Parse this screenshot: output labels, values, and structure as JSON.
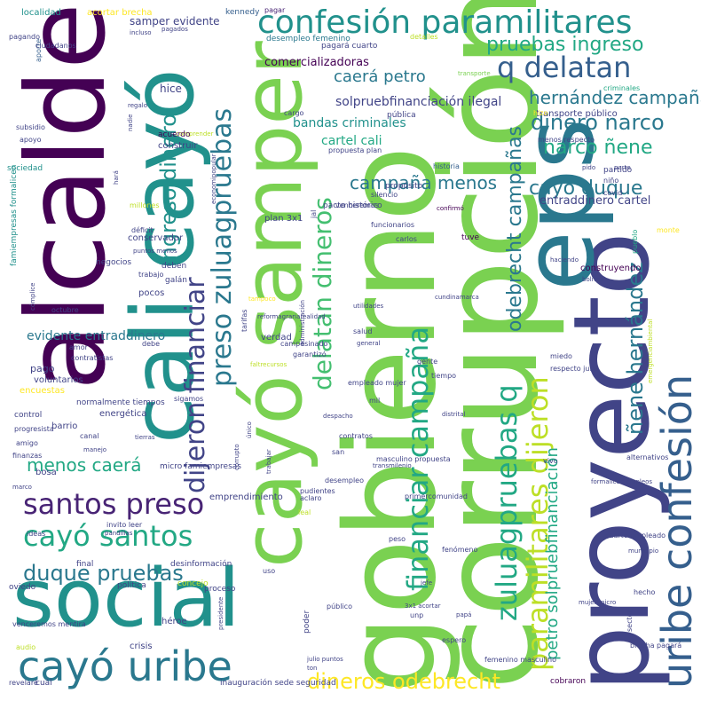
{
  "palette": {
    "c1": "#440154",
    "c2": "#482475",
    "c3": "#414487",
    "c4": "#355f8d",
    "c5": "#2a788e",
    "c6": "#21918c",
    "c7": "#22a884",
    "c8": "#44bf70",
    "c9": "#7ad151",
    "c10": "#bddf26",
    "c11": "#fde725"
  },
  "words": [
    "corrupción",
    "gobierno",
    "proyecto",
    "alcalde",
    "cayó samper",
    "cali cayó",
    "eps",
    "social",
    "cayó uribe",
    "uribe confesión",
    "confesión paramilitares",
    "zuluagpruebas q",
    "paramilitares dijeron",
    "financiar campaña",
    "cayó santos",
    "santos preso",
    "duque pruebas",
    "dineros odebrecht",
    "q delatan",
    "pruebas ingreso",
    "dijeron financiar",
    "preso zuluagpruebas",
    "delatan dineros",
    "hernández campaña",
    "dinero narco",
    "narco ñene",
    "cayó duque",
    "ingreso dinero",
    "odebrecht campañas",
    "campaña menos",
    "caerá petro",
    "petro solpruebfinanciación",
    "ñene hernández",
    "menos caerá",
    "solpruebfinanciación ilegal",
    "cartel cali",
    "bandas criminales",
    "entraddinero cartel",
    "evidente entraddinero",
    "comercializadoras",
    "hice",
    "samper evidente",
    "localidad",
    "acortar brecha",
    "kennedy",
    "pagar",
    "desempleo femenino",
    "pagará cuarto",
    "detalles",
    "incluso",
    "pagados",
    "pagando",
    "aporte",
    "ciudadanos",
    "transporte",
    "criminales",
    "regalo",
    "nadie",
    "comprender",
    "apoyo",
    "subsidio",
    "sociedad",
    "famiempresas formalicen",
    "construir",
    "acuerdo",
    "menos respecto",
    "transporte público",
    "hizo",
    "pública",
    "cargo",
    "historia",
    "propósito",
    "propuesta plan",
    "venceremos",
    "silencio",
    "pacto histórico",
    "plan 3x1",
    "confirmó",
    "funcionarios",
    "jal",
    "tuve",
    "partido",
    "niño",
    "covid",
    "parte",
    "pido",
    "monte",
    "pueblo",
    "construyendo",
    "haciendo",
    "bolivar",
    "cundinamarca",
    "utilidades",
    "carlos",
    "salud",
    "general",
    "garantizó",
    "faltrecursos",
    "administración",
    "campesinado",
    "verdad",
    "tarifas",
    "reformagrariarealidad",
    "tampoco",
    "conservador",
    "negocios",
    "deben",
    "trabajo",
    "galán",
    "pocos",
    "tiempo",
    "octubre",
    "cómplice",
    "puntos menos",
    "economipopular",
    "millones",
    "déficit",
    "hará",
    "debe",
    "amor",
    "contratistas",
    "pago",
    "voluntarios",
    "encuestas",
    "normalmente tiempos",
    "control",
    "energética",
    "barrio",
    "progresista",
    "amigo",
    "canal",
    "manejo",
    "finanzas",
    "bosa",
    "marco",
    "micro famiempresas",
    "emprendimiento",
    "invito leer",
    "ideas",
    "pandillas",
    "final",
    "desinformación",
    "oviedo",
    "política",
    "concejo",
    "proceso",
    "venceremos mentira",
    "héroe",
    "crisis",
    "presidente",
    "audio",
    "revelaré",
    "cuál",
    "inauguración sede seguridad",
    "julio puntos",
    "ton",
    "femenino masculino",
    "cobraron",
    "brecha pagará",
    "sector",
    "hecho",
    "mujer micro",
    "papá",
    "jefe",
    "fenómeno",
    "peso",
    "cuarto empleado",
    "municipio",
    "leal",
    "uso",
    "poder",
    "público",
    "3x1 acortar",
    "unp",
    "espero",
    "sigamos",
    "empleado mujer",
    "mil",
    "despacho",
    "gente",
    "respecto julio",
    "miedo",
    "tierras",
    "único",
    "corrupto",
    "trabajar",
    "contratos",
    "san",
    "desempleo",
    "pudientes",
    "aclaro",
    "masculino propuesta",
    "transmilenio",
    "primercomunidad",
    "distrital",
    "alternativos",
    "vivo",
    "formalicen empleos",
    "emergenciambiental",
    "quierayudarealidadmismo"
  ]
}
